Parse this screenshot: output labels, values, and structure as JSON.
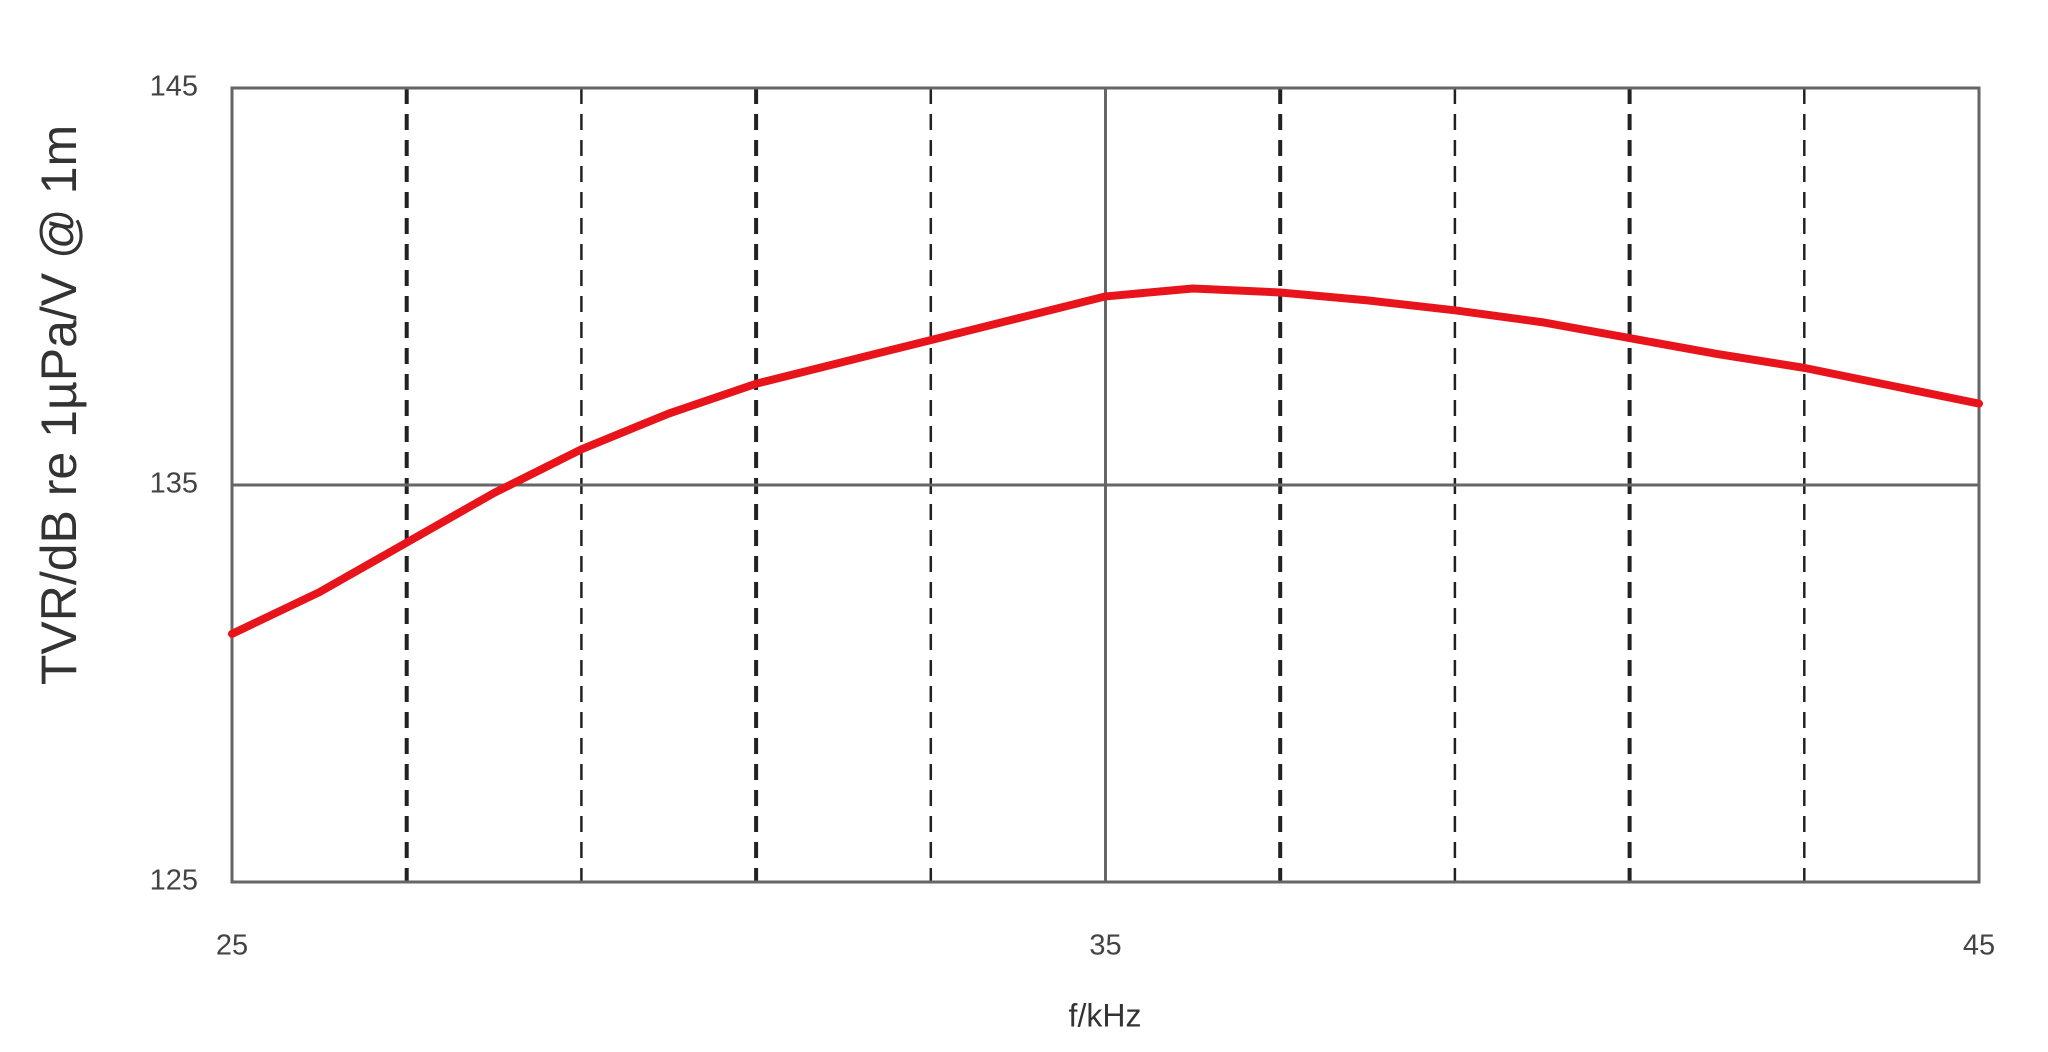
{
  "chart_data": {
    "type": "line",
    "ylabel": "TVR/dB re 1µPa/V @ 1m",
    "xlabel": "f/kHz",
    "x": [
      25,
      26,
      27,
      28,
      29,
      30,
      31,
      32,
      33,
      34,
      35,
      36,
      37,
      38,
      39,
      40,
      41,
      42,
      43,
      44,
      45
    ],
    "series": [
      {
        "name": "TVR",
        "color": "#e8141b",
        "values": [
          131.25,
          132.3,
          133.55,
          134.8,
          135.9,
          136.8,
          137.55,
          138.1,
          138.65,
          139.2,
          139.75,
          139.95,
          139.85,
          139.65,
          139.4,
          139.1,
          138.7,
          138.3,
          137.95,
          137.5,
          137.05
        ]
      }
    ],
    "xlim": [
      25,
      45
    ],
    "xticks": [
      25,
      35,
      45
    ],
    "ylim": [
      125,
      145
    ],
    "yticks": [
      125,
      135,
      145
    ],
    "grid": true
  }
}
